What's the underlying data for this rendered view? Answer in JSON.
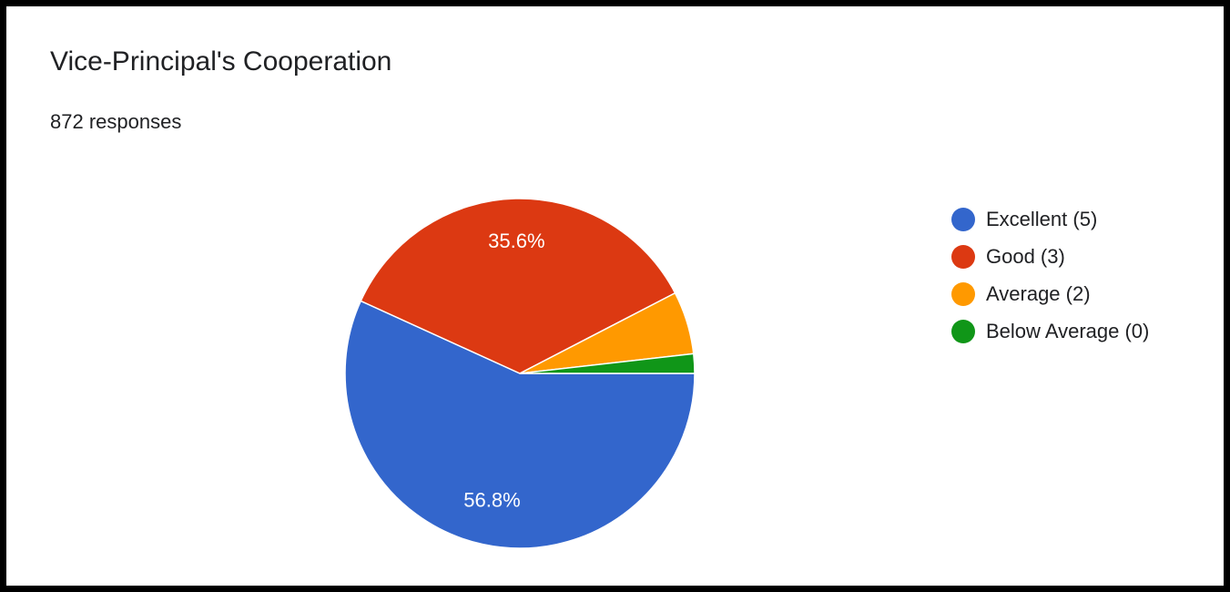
{
  "chart_data": {
    "type": "pie",
    "title": "Vice-Principal's Cooperation",
    "subtitle": "872 responses",
    "series": [
      {
        "name": "Excellent (5)",
        "value": 56.8,
        "label": "56.8%",
        "color": "#3366cc"
      },
      {
        "name": "Good (3)",
        "value": 35.6,
        "label": "35.6%",
        "color": "#dc3912"
      },
      {
        "name": "Average (2)",
        "value": 5.8,
        "label": "",
        "color": "#ff9900"
      },
      {
        "name": "Below Average (0)",
        "value": 1.8,
        "label": "",
        "color": "#109618"
      }
    ],
    "legend_position": "right"
  }
}
